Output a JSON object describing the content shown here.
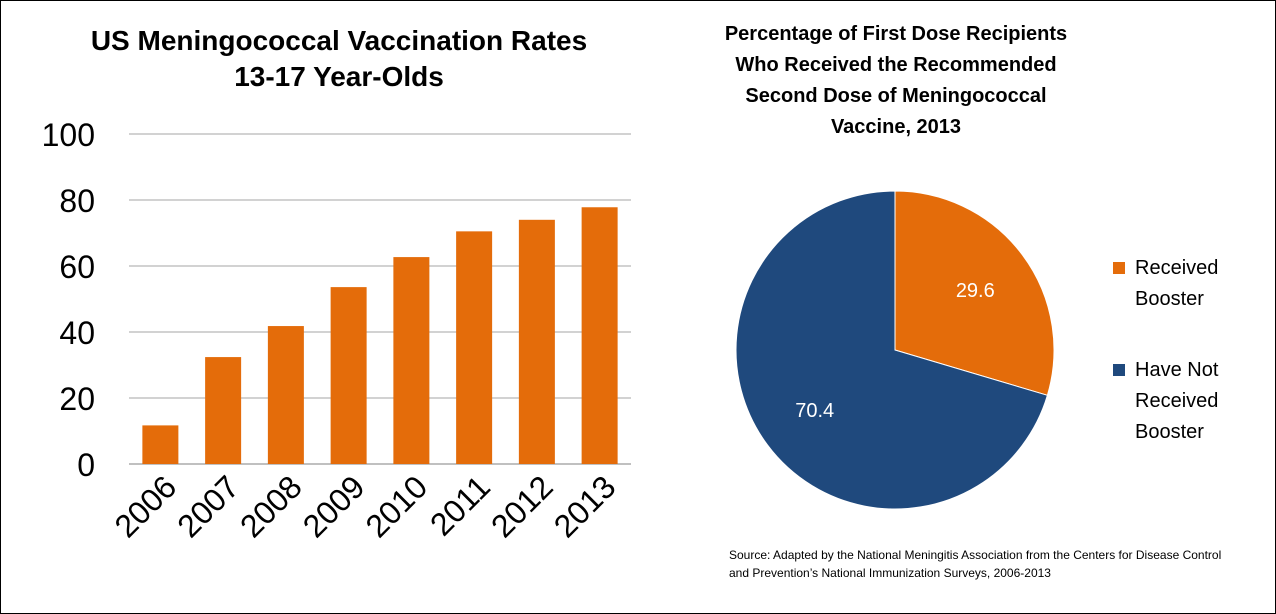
{
  "colors": {
    "orange": "#E46C0A",
    "navy": "#1F497D",
    "gridline": "#A6A6A6",
    "axis": "#808080"
  },
  "chart_data": [
    {
      "type": "bar",
      "title": "US Meningococcal Vaccination Rates 13-17 Year-Olds",
      "categories": [
        "2006",
        "2007",
        "2008",
        "2009",
        "2010",
        "2011",
        "2012",
        "2013"
      ],
      "values": [
        11.7,
        32.4,
        41.8,
        53.6,
        62.7,
        70.5,
        74.0,
        77.8
      ],
      "yticks": [
        "0",
        "20",
        "40",
        "60",
        "80",
        "100"
      ],
      "ylim": [
        0,
        100
      ],
      "grid": true,
      "color": "#E46C0A"
    },
    {
      "type": "pie",
      "title": "Percentage of First Dose Recipients Who Received the Recommended Second Dose of Meningococcal Vaccine, 2013",
      "slices": [
        {
          "label": "Received Booster",
          "value": 29.6,
          "display": "29.6",
          "color": "#E46C0A"
        },
        {
          "label": "Have Not Received Booster",
          "value": 70.4,
          "display": "70.4",
          "color": "#1F497D"
        }
      ],
      "legend_position": "right"
    }
  ],
  "source": "Source: Adapted by the National Meningitis Association from the Centers for Disease Control and Prevention’s National Immunization Surveys, 2006-2013"
}
